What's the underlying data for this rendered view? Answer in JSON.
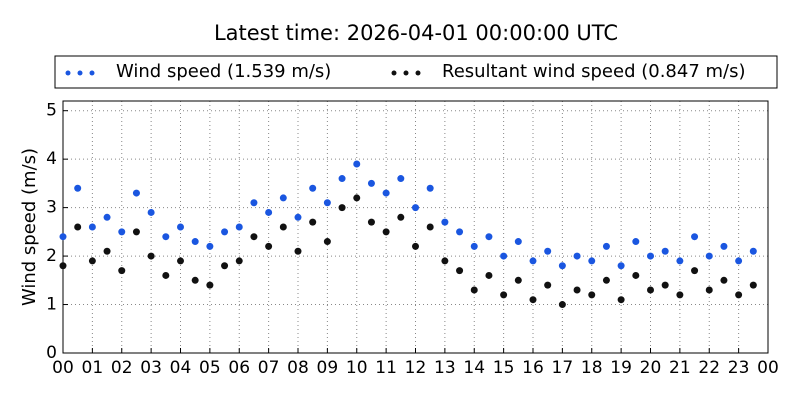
{
  "chart_data": {
    "type": "scatter",
    "title": "Latest time: 2026-04-01 00:00:00 UTC",
    "y_label": "Wind speed (m/s)",
    "x": [
      0,
      0.5,
      1,
      1.5,
      2,
      2.5,
      3,
      3.5,
      4,
      4.5,
      5,
      5.5,
      6,
      6.5,
      7,
      7.5,
      8,
      8.5,
      9,
      9.5,
      10,
      10.5,
      11,
      11.5,
      12,
      12.5,
      13,
      13.5,
      14,
      14.5,
      15,
      15.5,
      16,
      16.5,
      17,
      17.5,
      18,
      18.5,
      19,
      19.5,
      20,
      20.5,
      21,
      21.5,
      22,
      22.5,
      23,
      23.5
    ],
    "series": [
      {
        "name": "Wind speed (1.539 m/s)",
        "color": "#1a56e0",
        "values": [
          2.4,
          3.4,
          2.6,
          2.8,
          2.5,
          3.3,
          2.9,
          2.4,
          2.6,
          2.3,
          2.2,
          2.5,
          2.6,
          3.1,
          2.9,
          3.2,
          2.8,
          3.4,
          3.1,
          3.6,
          3.9,
          3.5,
          3.3,
          3.6,
          3.0,
          3.4,
          2.7,
          2.5,
          2.2,
          2.4,
          2.0,
          2.3,
          1.9,
          2.1,
          1.8,
          2.0,
          1.9,
          2.2,
          1.8,
          2.3,
          2.0,
          2.1,
          1.9,
          2.4,
          2.0,
          2.2,
          1.9,
          2.1
        ]
      },
      {
        "name": "Resultant wind speed (0.847 m/s)",
        "color": "#111111",
        "values": [
          1.8,
          2.6,
          1.9,
          2.1,
          1.7,
          2.5,
          2.0,
          1.6,
          1.9,
          1.5,
          1.4,
          1.8,
          1.9,
          2.4,
          2.2,
          2.6,
          2.1,
          2.7,
          2.3,
          3.0,
          3.2,
          2.7,
          2.5,
          2.8,
          2.2,
          2.6,
          1.9,
          1.7,
          1.3,
          1.6,
          1.2,
          1.5,
          1.1,
          1.4,
          1.0,
          1.3,
          1.2,
          1.5,
          1.1,
          1.6,
          1.3,
          1.4,
          1.2,
          1.7,
          1.3,
          1.5,
          1.2,
          1.4
        ]
      }
    ],
    "xlim": [
      0,
      24
    ],
    "xticks": [
      {
        "value": 0,
        "label": "00"
      },
      {
        "value": 1,
        "label": "01"
      },
      {
        "value": 2,
        "label": "02"
      },
      {
        "value": 3,
        "label": "03"
      },
      {
        "value": 4,
        "label": "04"
      },
      {
        "value": 5,
        "label": "05"
      },
      {
        "value": 6,
        "label": "06"
      },
      {
        "value": 7,
        "label": "07"
      },
      {
        "value": 8,
        "label": "08"
      },
      {
        "value": 9,
        "label": "09"
      },
      {
        "value": 10,
        "label": "10"
      },
      {
        "value": 11,
        "label": "11"
      },
      {
        "value": 12,
        "label": "12"
      },
      {
        "value": 13,
        "label": "13"
      },
      {
        "value": 14,
        "label": "14"
      },
      {
        "value": 15,
        "label": "15"
      },
      {
        "value": 16,
        "label": "16"
      },
      {
        "value": 17,
        "label": "17"
      },
      {
        "value": 18,
        "label": "18"
      },
      {
        "value": 19,
        "label": "19"
      },
      {
        "value": 20,
        "label": "20"
      },
      {
        "value": 21,
        "label": "21"
      },
      {
        "value": 22,
        "label": "22"
      },
      {
        "value": 23,
        "label": "23"
      },
      {
        "value": 24,
        "label": "00"
      }
    ],
    "ylim": [
      0,
      5.2
    ],
    "yticks": [
      0,
      1,
      2,
      3,
      4,
      5
    ],
    "grid": true,
    "legend": "top"
  }
}
